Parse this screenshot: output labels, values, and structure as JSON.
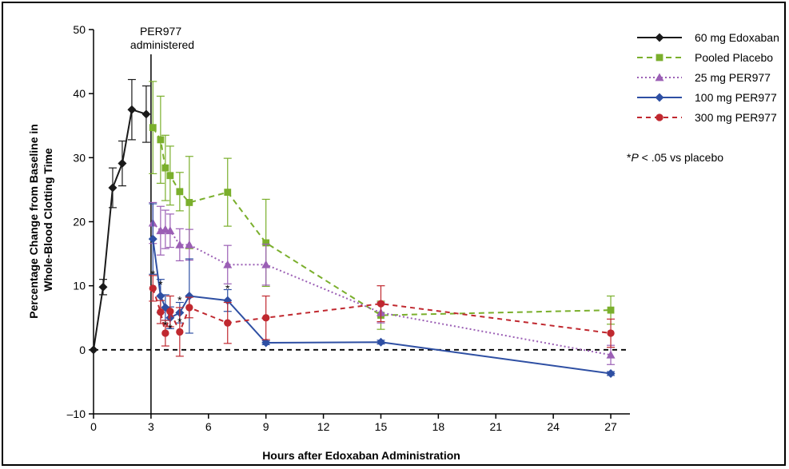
{
  "chart_data": {
    "type": "line",
    "xlabel": "Hours after Edoxaban Administration",
    "ylabel_lines": [
      "Percentage Change from Baseline in",
      "Whole-Blood Clotting Time"
    ],
    "xlim": [
      0,
      28
    ],
    "ylim": [
      -10,
      50
    ],
    "xticks": [
      0,
      3,
      6,
      9,
      12,
      15,
      18,
      21,
      24,
      27
    ],
    "yticks": [
      -10,
      0,
      10,
      20,
      30,
      40,
      50
    ],
    "xtick_labels": [
      "0",
      "3",
      "6",
      "9",
      "12",
      "15",
      "18",
      "21",
      "24",
      "27"
    ],
    "ytick_labels": [
      "–10",
      "0",
      "10",
      "20",
      "30",
      "40",
      "50"
    ],
    "reference_line_y": 0,
    "vline": {
      "x": 3,
      "label_lines": [
        "PER977",
        "administered"
      ]
    },
    "footnote": {
      "prefix": "*",
      "italic": "P",
      "rest": " < .05 vs placebo"
    },
    "legend_position": "top-right",
    "series": [
      {
        "name": "60 mg Edoxaban",
        "color": "#1a1a1a",
        "dash": "solid",
        "marker": "diamond",
        "x": [
          0,
          0.5,
          1,
          1.5,
          2,
          2.75
        ],
        "y": [
          0,
          9.8,
          25.3,
          29.1,
          37.5,
          36.8
        ],
        "err": [
          0,
          1.2,
          3.1,
          3.5,
          4.7,
          4.4
        ]
      },
      {
        "name": "Pooled Placebo",
        "color": "#7aaf2c",
        "dash": "dashed",
        "marker": "square",
        "x": [
          3.1,
          3.5,
          3.75,
          4,
          4.5,
          5,
          7,
          9,
          15,
          27
        ],
        "y": [
          34.7,
          32.8,
          28.4,
          27.2,
          24.7,
          23.0,
          24.6,
          16.7,
          5.4,
          6.2
        ],
        "err": [
          7.2,
          6.8,
          5.1,
          4.6,
          3.0,
          7.2,
          5.3,
          6.8,
          2.2,
          2.2
        ]
      },
      {
        "name": "25 mg PER977",
        "color": "#9b5fb5",
        "dash": "dotted",
        "marker": "triangle",
        "x": [
          3.1,
          3.5,
          3.75,
          4,
          4.5,
          5,
          7,
          9,
          15,
          27
        ],
        "y": [
          19.8,
          18.6,
          18.8,
          18.6,
          16.4,
          16.4,
          13.3,
          13.3,
          5.8,
          -0.8
        ],
        "err": [
          3.2,
          3.8,
          3.0,
          2.6,
          2.5,
          2.4,
          3.0,
          3.2,
          1.6,
          1.5
        ]
      },
      {
        "name": "100 mg PER977",
        "color": "#2e4fa3",
        "dash": "solid",
        "marker": "diamond",
        "x": [
          3.1,
          3.5,
          3.75,
          4,
          4.5,
          5,
          7,
          9,
          15,
          27
        ],
        "y": [
          17.3,
          8.4,
          6.6,
          5.0,
          5.8,
          8.4,
          7.7,
          1.1,
          1.2,
          -3.7
        ],
        "err": [
          5.5,
          2.6,
          2.0,
          1.7,
          1.6,
          5.8,
          1.7,
          0.3,
          0.3,
          0.3
        ]
      },
      {
        "name": "300 mg PER977",
        "color": "#c0282f",
        "dash": "dashed-short",
        "marker": "circle",
        "x": [
          3.1,
          3.5,
          3.75,
          4,
          4.5,
          5,
          7,
          9,
          15,
          27
        ],
        "y": [
          9.6,
          5.9,
          2.6,
          6.0,
          2.8,
          6.6,
          4.2,
          5.0,
          7.2,
          2.6
        ],
        "err": [
          2.0,
          1.8,
          2.0,
          2.4,
          3.8,
          1.6,
          3.2,
          3.4,
          2.8,
          2.2
        ]
      }
    ],
    "significance_markers": [
      {
        "x": 3.1,
        "y": 11.8,
        "text": "*"
      },
      {
        "x": 3.5,
        "y": 10.2,
        "text": "*"
      },
      {
        "x": 3.75,
        "y": 3.9,
        "text": "*"
      },
      {
        "x": 4,
        "y": 3.4,
        "text": "*"
      },
      {
        "x": 4.5,
        "y": 4.4,
        "text": "*"
      },
      {
        "x": 4.5,
        "y": 7.8,
        "text": "*"
      },
      {
        "x": 7,
        "y": 9.6,
        "text": "*"
      }
    ]
  }
}
